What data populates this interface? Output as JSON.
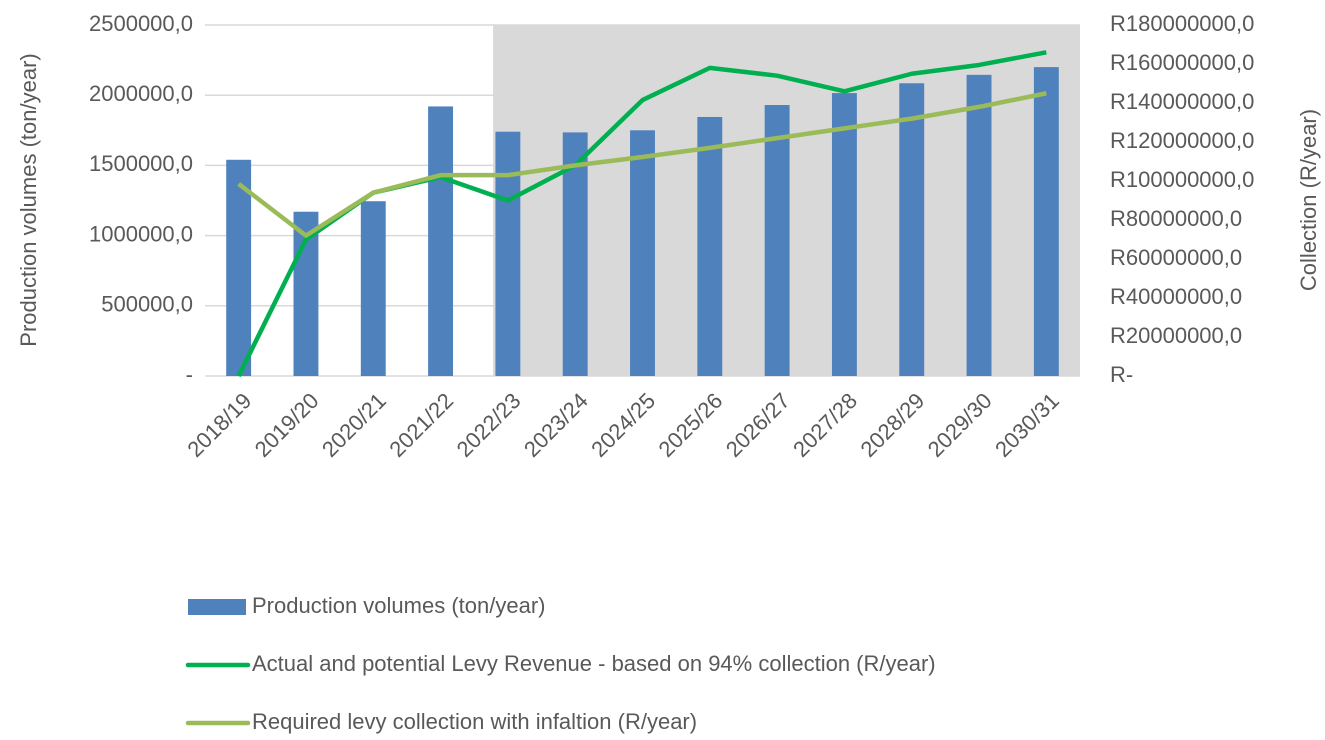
{
  "chart_data": {
    "type": "bar_line",
    "y_label": "Production volumes (ton/year)",
    "y2_label": "Collection (R/year)",
    "categories": [
      "2018/19",
      "2019/20",
      "2020/21",
      "2021/22",
      "2022/23",
      "2023/24",
      "2024/25",
      "2025/26",
      "2026/27",
      "2027/28",
      "2028/29",
      "2029/30",
      "2030/31"
    ],
    "series": [
      {
        "name": "Production volumes (ton/year)",
        "type": "bar",
        "color": "#4f81bd",
        "values": [
          1540000,
          1170000,
          1245000,
          1920000,
          1740000,
          1735000,
          1750000,
          1845000,
          1930000,
          2015000,
          2085000,
          2145000,
          2200000
        ]
      },
      {
        "name": "Actual and potential Levy Revenue - based on 94% collection (R/year)",
        "type": "line",
        "axis": "y2",
        "color": "#00b050",
        "values": [
          0,
          70000000,
          94000000,
          102000000,
          90000000,
          108000000,
          141500000,
          158000000,
          154000000,
          146000000,
          155000000,
          159500000,
          166000000
        ]
      },
      {
        "name": "Required levy collection with infaltion (R/year)",
        "type": "line",
        "axis": "y2",
        "color": "#9bbb59",
        "values": [
          98500000,
          72000000,
          94000000,
          103000000,
          103000000,
          108000000,
          112300000,
          117000000,
          122000000,
          127000000,
          132000000,
          138000000,
          145000000
        ]
      }
    ],
    "ylim": [
      0,
      2500000
    ],
    "yticks": [
      {
        "value": 0,
        "label": "-"
      },
      {
        "value": 500000,
        "label": "500000,0"
      },
      {
        "value": 1000000,
        "label": "1000000,0"
      },
      {
        "value": 1500000,
        "label": "1500000,0"
      },
      {
        "value": 2000000,
        "label": "2000000,0"
      },
      {
        "value": 2500000,
        "label": "2500000,0"
      }
    ],
    "y2lim": [
      0,
      180000000
    ],
    "y2ticks": [
      {
        "value": 0,
        "label": "R-"
      },
      {
        "value": 20000000,
        "label": "R20000000,0"
      },
      {
        "value": 40000000,
        "label": "R40000000,0"
      },
      {
        "value": 60000000,
        "label": "R60000000,0"
      },
      {
        "value": 80000000,
        "label": "R80000000,0"
      },
      {
        "value": 100000000,
        "label": "R100000000,0"
      },
      {
        "value": 120000000,
        "label": "R120000000,0"
      },
      {
        "value": 140000000,
        "label": "R140000000,0"
      },
      {
        "value": 160000000,
        "label": "R160000000,0"
      },
      {
        "value": 180000000,
        "label": "R180000000,0"
      }
    ],
    "grid": true
  }
}
